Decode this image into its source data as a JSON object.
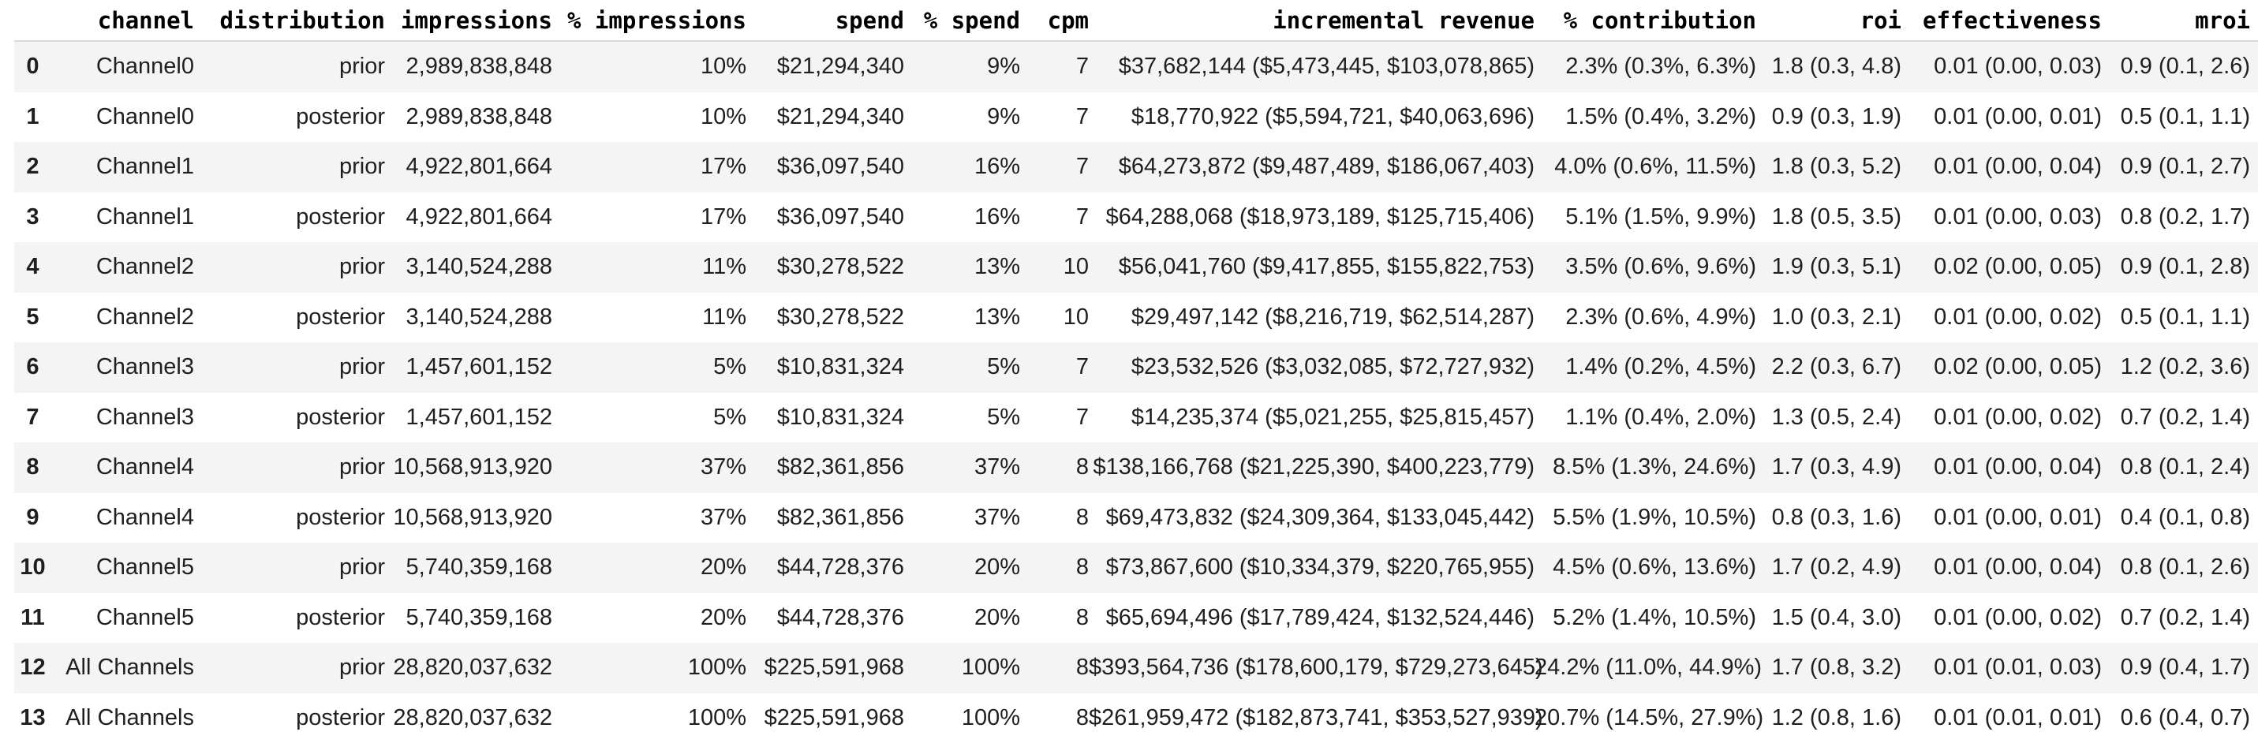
{
  "colors": {
    "background": "#ffffff",
    "row_stripe": "#f4f4f4",
    "header_rule": "#d9d9d9",
    "body_text": "#1f1f1f",
    "header_text": "#000000"
  },
  "chart_data": {
    "type": "table",
    "title": "",
    "columns": [
      "",
      "channel",
      "distribution",
      "impressions",
      "% impressions",
      "spend",
      "% spend",
      "cpm",
      "incremental revenue",
      "% contribution",
      "roi",
      "effectiveness",
      "mroi"
    ],
    "rows": [
      [
        "0",
        "Channel0",
        "prior",
        "2,989,838,848",
        "10%",
        "$21,294,340",
        "9%",
        "7",
        "$37,682,144 ($5,473,445, $103,078,865)",
        "2.3% (0.3%, 6.3%)",
        "1.8 (0.3, 4.8)",
        "0.01 (0.00, 0.03)",
        "0.9 (0.1, 2.6)"
      ],
      [
        "1",
        "Channel0",
        "posterior",
        "2,989,838,848",
        "10%",
        "$21,294,340",
        "9%",
        "7",
        "$18,770,922 ($5,594,721, $40,063,696)",
        "1.5% (0.4%, 3.2%)",
        "0.9 (0.3, 1.9)",
        "0.01 (0.00, 0.01)",
        "0.5 (0.1, 1.1)"
      ],
      [
        "2",
        "Channel1",
        "prior",
        "4,922,801,664",
        "17%",
        "$36,097,540",
        "16%",
        "7",
        "$64,273,872 ($9,487,489, $186,067,403)",
        "4.0% (0.6%, 11.5%)",
        "1.8 (0.3, 5.2)",
        "0.01 (0.00, 0.04)",
        "0.9 (0.1, 2.7)"
      ],
      [
        "3",
        "Channel1",
        "posterior",
        "4,922,801,664",
        "17%",
        "$36,097,540",
        "16%",
        "7",
        "$64,288,068 ($18,973,189, $125,715,406)",
        "5.1% (1.5%, 9.9%)",
        "1.8 (0.5, 3.5)",
        "0.01 (0.00, 0.03)",
        "0.8 (0.2, 1.7)"
      ],
      [
        "4",
        "Channel2",
        "prior",
        "3,140,524,288",
        "11%",
        "$30,278,522",
        "13%",
        "10",
        "$56,041,760 ($9,417,855, $155,822,753)",
        "3.5% (0.6%, 9.6%)",
        "1.9 (0.3, 5.1)",
        "0.02 (0.00, 0.05)",
        "0.9 (0.1, 2.8)"
      ],
      [
        "5",
        "Channel2",
        "posterior",
        "3,140,524,288",
        "11%",
        "$30,278,522",
        "13%",
        "10",
        "$29,497,142 ($8,216,719, $62,514,287)",
        "2.3% (0.6%, 4.9%)",
        "1.0 (0.3, 2.1)",
        "0.01 (0.00, 0.02)",
        "0.5 (0.1, 1.1)"
      ],
      [
        "6",
        "Channel3",
        "prior",
        "1,457,601,152",
        "5%",
        "$10,831,324",
        "5%",
        "7",
        "$23,532,526 ($3,032,085, $72,727,932)",
        "1.4% (0.2%, 4.5%)",
        "2.2 (0.3, 6.7)",
        "0.02 (0.00, 0.05)",
        "1.2 (0.2, 3.6)"
      ],
      [
        "7",
        "Channel3",
        "posterior",
        "1,457,601,152",
        "5%",
        "$10,831,324",
        "5%",
        "7",
        "$14,235,374 ($5,021,255, $25,815,457)",
        "1.1% (0.4%, 2.0%)",
        "1.3 (0.5, 2.4)",
        "0.01 (0.00, 0.02)",
        "0.7 (0.2, 1.4)"
      ],
      [
        "8",
        "Channel4",
        "prior",
        "10,568,913,920",
        "37%",
        "$82,361,856",
        "37%",
        "8",
        "$138,166,768 ($21,225,390, $400,223,779)",
        "8.5% (1.3%, 24.6%)",
        "1.7 (0.3, 4.9)",
        "0.01 (0.00, 0.04)",
        "0.8 (0.1, 2.4)"
      ],
      [
        "9",
        "Channel4",
        "posterior",
        "10,568,913,920",
        "37%",
        "$82,361,856",
        "37%",
        "8",
        "$69,473,832 ($24,309,364, $133,045,442)",
        "5.5% (1.9%, 10.5%)",
        "0.8 (0.3, 1.6)",
        "0.01 (0.00, 0.01)",
        "0.4 (0.1, 0.8)"
      ],
      [
        "10",
        "Channel5",
        "prior",
        "5,740,359,168",
        "20%",
        "$44,728,376",
        "20%",
        "8",
        "$73,867,600 ($10,334,379, $220,765,955)",
        "4.5% (0.6%, 13.6%)",
        "1.7 (0.2, 4.9)",
        "0.01 (0.00, 0.04)",
        "0.8 (0.1, 2.6)"
      ],
      [
        "11",
        "Channel5",
        "posterior",
        "5,740,359,168",
        "20%",
        "$44,728,376",
        "20%",
        "8",
        "$65,694,496 ($17,789,424, $132,524,446)",
        "5.2% (1.4%, 10.5%)",
        "1.5 (0.4, 3.0)",
        "0.01 (0.00, 0.02)",
        "0.7 (0.2, 1.4)"
      ],
      [
        "12",
        "All Channels",
        "prior",
        "28,820,037,632",
        "100%",
        "$225,591,968",
        "100%",
        "8",
        "$393,564,736 ($178,600,179, $729,273,645)",
        "24.2% (11.0%, 44.9%)",
        "1.7 (0.8, 3.2)",
        "0.01 (0.01, 0.03)",
        "0.9 (0.4, 1.7)"
      ],
      [
        "13",
        "All Channels",
        "posterior",
        "28,820,037,632",
        "100%",
        "$225,591,968",
        "100%",
        "8",
        "$261,959,472 ($182,873,741, $353,527,939)",
        "20.7% (14.5%, 27.9%)",
        "1.2 (0.8, 1.6)",
        "0.01 (0.01, 0.01)",
        "0.6 (0.4, 0.7)"
      ]
    ]
  }
}
